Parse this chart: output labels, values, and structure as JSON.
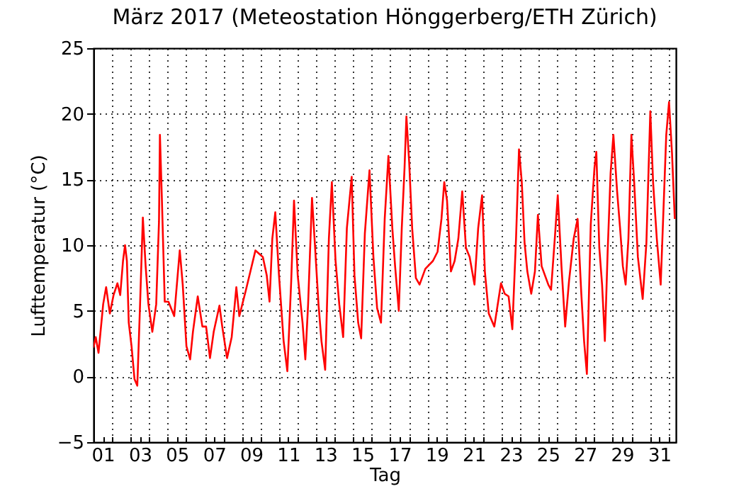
{
  "chart_data": {
    "type": "line",
    "title": "März 2017  (Meteostation Hönggerberg/ETH Zürich)",
    "xlabel": "Tag",
    "ylabel": "Lufttemperatur (°C)",
    "x": [
      0.5,
      0.62,
      0.77,
      1.02,
      1.18,
      1.38,
      1.58,
      1.79,
      1.94,
      2.09,
      2.2,
      2.3,
      2.4,
      2.55,
      2.71,
      2.86,
      3.01,
      3.16,
      3.31,
      3.46,
      3.67,
      3.88,
      4.03,
      4.08,
      4.18,
      4.34,
      4.54,
      4.85,
      5.15,
      5.31,
      5.51,
      5.71,
      5.86,
      6.12,
      6.37,
      6.57,
      6.78,
      6.98,
      7.29,
      7.44,
      7.7,
      7.95,
      8.2,
      8.36,
      8.72,
      9.23,
      9.63,
      9.84,
      9.99,
      10.14,
      10.3,
      10.5,
      10.75,
      10.95,
      11.16,
      11.31,
      11.51,
      11.77,
      11.92,
      12.07,
      12.28,
      12.43,
      12.63,
      12.79,
      12.99,
      13.19,
      13.35,
      13.55,
      13.75,
      13.96,
      14.16,
      14.42,
      14.57,
      14.77,
      14.93,
      15.13,
      15.38,
      15.59,
      15.79,
      16.0,
      16.2,
      16.4,
      16.61,
      16.76,
      16.96,
      17.12,
      17.27,
      17.37,
      17.52,
      17.68,
      17.88,
      18.08,
      18.39,
      18.8,
      19.05,
      19.26,
      19.41,
      19.56,
      19.77,
      19.97,
      20.17,
      20.38,
      20.58,
      20.78,
      21.04,
      21.24,
      21.45,
      21.6,
      21.81,
      22.11,
      22.47,
      22.67,
      22.88,
      23.08,
      23.28,
      23.44,
      23.59,
      23.74,
      23.89,
      24.1,
      24.3,
      24.46,
      24.66,
      25.02,
      25.17,
      25.37,
      25.53,
      25.73,
      25.93,
      26.14,
      26.39,
      26.6,
      26.8,
      26.95,
      27.1,
      27.31,
      27.51,
      27.61,
      27.77,
      27.92,
      28.07,
      28.22,
      28.38,
      28.53,
      28.73,
      28.89,
      29.04,
      29.19,
      29.34,
      29.5,
      29.65,
      29.85,
      30.11,
      30.31,
      30.52,
      30.67,
      30.87,
      31.08,
      31.23,
      31.38,
      31.53,
      31.69,
      31.84
    ],
    "series": [
      {
        "color": "#ff0000",
        "values": [
          2.2,
          3.0,
          1.8,
          5.5,
          6.8,
          4.8,
          6.2,
          7.1,
          6.2,
          8.8,
          10.0,
          8.8,
          4.1,
          2.3,
          -0.2,
          -0.7,
          5.5,
          12.1,
          8.4,
          5.5,
          3.4,
          5.5,
          11.8,
          18.4,
          13.8,
          5.7,
          5.7,
          4.6,
          9.6,
          7.0,
          2.3,
          1.3,
          3.4,
          6.1,
          3.8,
          3.8,
          1.4,
          3.4,
          5.4,
          3.8,
          1.4,
          3.0,
          6.8,
          4.6,
          6.6,
          9.6,
          9.1,
          7.7,
          5.7,
          10.5,
          12.5,
          7.7,
          2.7,
          0.4,
          7.3,
          13.4,
          7.7,
          4.1,
          1.3,
          5.5,
          13.6,
          10.2,
          5.5,
          2.7,
          0.5,
          10.5,
          14.8,
          8.8,
          5.5,
          3.0,
          11.3,
          15.2,
          7.7,
          4.1,
          2.9,
          10.9,
          15.7,
          9.1,
          5.2,
          4.1,
          12.0,
          16.8,
          11.3,
          8.4,
          5.0,
          11.3,
          15.9,
          19.8,
          16.3,
          11.3,
          7.5,
          7.0,
          8.2,
          8.8,
          9.5,
          12.0,
          14.8,
          13.4,
          8.0,
          8.8,
          10.5,
          14.1,
          9.8,
          9.1,
          7.0,
          11.3,
          13.8,
          8.0,
          4.8,
          3.8,
          7.1,
          6.3,
          6.1,
          3.6,
          10.5,
          17.3,
          14.8,
          10.2,
          8.0,
          6.3,
          8.0,
          12.3,
          8.4,
          7.0,
          6.6,
          10.5,
          13.8,
          8.4,
          3.8,
          7.3,
          10.5,
          12.0,
          6.3,
          2.7,
          0.2,
          11.6,
          15.9,
          17.1,
          9.8,
          7.0,
          2.7,
          9.5,
          15.5,
          18.4,
          14.1,
          11.3,
          8.4,
          7.0,
          10.5,
          18.4,
          14.8,
          9.1,
          5.9,
          10.2,
          20.2,
          14.8,
          10.5,
          7.0,
          12.7,
          18.4,
          20.9,
          17.0,
          12.0
        ]
      }
    ],
    "xlim": [
      0.5,
      31.9
    ],
    "xticks": [
      {
        "value": 1,
        "label": "01"
      },
      {
        "value": 1.5,
        "label": null
      },
      {
        "value": 2.5,
        "label": null
      },
      {
        "value": 3,
        "label": "03"
      },
      {
        "value": 3.5,
        "label": null
      },
      {
        "value": 4.5,
        "label": null
      },
      {
        "value": 5,
        "label": "05"
      },
      {
        "value": 5.5,
        "label": null
      },
      {
        "value": 6.5,
        "label": null
      },
      {
        "value": 7,
        "label": "07"
      },
      {
        "value": 7.5,
        "label": null
      },
      {
        "value": 8.5,
        "label": null
      },
      {
        "value": 9,
        "label": "09"
      },
      {
        "value": 9.5,
        "label": null
      },
      {
        "value": 10.5,
        "label": null
      },
      {
        "value": 11,
        "label": "11"
      },
      {
        "value": 11.5,
        "label": null
      },
      {
        "value": 12.5,
        "label": null
      },
      {
        "value": 13,
        "label": "13"
      },
      {
        "value": 13.5,
        "label": null
      },
      {
        "value": 14.5,
        "label": null
      },
      {
        "value": 15,
        "label": "15"
      },
      {
        "value": 15.5,
        "label": null
      },
      {
        "value": 16.5,
        "label": null
      },
      {
        "value": 17,
        "label": "17"
      },
      {
        "value": 17.5,
        "label": null
      },
      {
        "value": 18.5,
        "label": null
      },
      {
        "value": 19,
        "label": "19"
      },
      {
        "value": 19.5,
        "label": null
      },
      {
        "value": 20.5,
        "label": null
      },
      {
        "value": 21,
        "label": "21"
      },
      {
        "value": 21.5,
        "label": null
      },
      {
        "value": 22.5,
        "label": null
      },
      {
        "value": 23,
        "label": "23"
      },
      {
        "value": 23.5,
        "label": null
      },
      {
        "value": 24.5,
        "label": null
      },
      {
        "value": 25,
        "label": "25"
      },
      {
        "value": 25.5,
        "label": null
      },
      {
        "value": 26.5,
        "label": null
      },
      {
        "value": 27,
        "label": "27"
      },
      {
        "value": 27.5,
        "label": null
      },
      {
        "value": 28.5,
        "label": null
      },
      {
        "value": 29,
        "label": "29"
      },
      {
        "value": 29.5,
        "label": null
      },
      {
        "value": 30.5,
        "label": null
      },
      {
        "value": 31,
        "label": "31"
      },
      {
        "value": 31.5,
        "label": null
      }
    ],
    "ylim": [
      -5,
      25
    ],
    "yticks": [
      {
        "value": -5,
        "label": "−5"
      },
      0,
      5,
      10,
      15,
      20,
      25
    ],
    "grid": true
  }
}
